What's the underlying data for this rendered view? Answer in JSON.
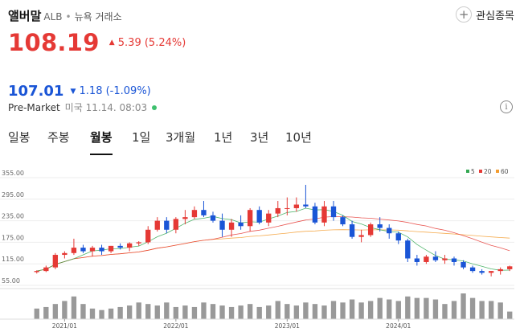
{
  "stock": {
    "name": "앨버말",
    "ticker": "ALB",
    "exchange": "뉴욕 거래소",
    "favorite_label": "관심종목",
    "price": "108.19",
    "change": "5.39 (5.24%)",
    "premarket_price": "107.01",
    "premarket_change": "1.18 (-1.09%)",
    "premarket_label": "Pre-Market",
    "premarket_time": "미국 11.14. 08:03"
  },
  "tabs": [
    {
      "label": "일봉",
      "active": false
    },
    {
      "label": "주봉",
      "active": false
    },
    {
      "label": "월봉",
      "active": true
    },
    {
      "label": "1일",
      "active": false
    },
    {
      "label": "3개월",
      "active": false
    },
    {
      "label": "1년",
      "active": false
    },
    {
      "label": "3년",
      "active": false
    },
    {
      "label": "10년",
      "active": false
    }
  ],
  "colors": {
    "up": "#e53935",
    "down": "#1a55d6",
    "ma5": "#33a852",
    "ma20": "#e53935",
    "ma60": "#f39c2f"
  },
  "chart_data": {
    "type": "candlestick",
    "period": "monthly",
    "y_ticks": [
      "355.00",
      "295.00",
      "235.00",
      "175.00",
      "115.00",
      "55.00"
    ],
    "ylim": [
      55,
      355
    ],
    "x_labels": [
      {
        "label": "2021/01",
        "index": 3
      },
      {
        "label": "2022/01",
        "index": 15
      },
      {
        "label": "2023/01",
        "index": 27
      },
      {
        "label": "2024/01",
        "index": 39
      }
    ],
    "legend": [
      {
        "label": "5",
        "color": "#33a852"
      },
      {
        "label": "20",
        "color": "#e53935"
      },
      {
        "label": "60",
        "color": "#f39c2f"
      }
    ],
    "candles": [
      [
        92,
        97,
        88,
        95
      ],
      [
        95,
        110,
        92,
        105
      ],
      [
        105,
        145,
        100,
        140
      ],
      [
        140,
        150,
        130,
        145
      ],
      [
        145,
        185,
        140,
        160
      ],
      [
        160,
        168,
        145,
        150
      ],
      [
        150,
        165,
        135,
        160
      ],
      [
        160,
        168,
        140,
        150
      ],
      [
        150,
        165,
        145,
        165
      ],
      [
        165,
        172,
        155,
        160
      ],
      [
        160,
        175,
        150,
        172
      ],
      [
        172,
        178,
        165,
        175
      ],
      [
        175,
        220,
        170,
        210
      ],
      [
        210,
        245,
        205,
        235
      ],
      [
        235,
        245,
        200,
        210
      ],
      [
        210,
        245,
        200,
        240
      ],
      [
        240,
        265,
        225,
        245
      ],
      [
        245,
        275,
        240,
        265
      ],
      [
        265,
        290,
        245,
        250
      ],
      [
        250,
        260,
        230,
        235
      ],
      [
        235,
        255,
        190,
        210
      ],
      [
        210,
        240,
        190,
        230
      ],
      [
        230,
        250,
        210,
        220
      ],
      [
        220,
        270,
        205,
        265
      ],
      [
        265,
        275,
        225,
        230
      ],
      [
        230,
        265,
        220,
        255
      ],
      [
        255,
        290,
        245,
        270
      ],
      [
        270,
        300,
        250,
        270
      ],
      [
        270,
        300,
        260,
        280
      ],
      [
        280,
        335,
        270,
        275
      ],
      [
        275,
        285,
        225,
        230
      ],
      [
        230,
        290,
        220,
        275
      ],
      [
        275,
        290,
        235,
        245
      ],
      [
        245,
        250,
        220,
        225
      ],
      [
        225,
        235,
        185,
        190
      ],
      [
        190,
        210,
        175,
        195
      ],
      [
        195,
        230,
        190,
        225
      ],
      [
        225,
        245,
        205,
        215
      ],
      [
        215,
        225,
        185,
        200
      ],
      [
        200,
        205,
        170,
        180
      ],
      [
        180,
        185,
        120,
        130
      ],
      [
        130,
        140,
        110,
        120
      ],
      [
        120,
        140,
        115,
        135
      ],
      [
        135,
        150,
        120,
        125
      ],
      [
        125,
        140,
        115,
        130
      ],
      [
        130,
        135,
        110,
        120
      ],
      [
        120,
        125,
        100,
        105
      ],
      [
        105,
        110,
        90,
        95
      ],
      [
        95,
        100,
        85,
        90
      ],
      [
        90,
        95,
        80,
        95
      ],
      [
        95,
        105,
        85,
        100
      ],
      [
        100,
        110,
        95,
        108
      ]
    ],
    "volumes": [
      35,
      40,
      50,
      60,
      75,
      50,
      35,
      30,
      35,
      40,
      45,
      55,
      50,
      45,
      55,
      40,
      45,
      40,
      55,
      50,
      45,
      40,
      45,
      50,
      40,
      45,
      60,
      50,
      45,
      55,
      50,
      45,
      60,
      55,
      65,
      55,
      60,
      70,
      65,
      60,
      75,
      70,
      70,
      65,
      50,
      60,
      85,
      70,
      60,
      60,
      55,
      25
    ]
  }
}
